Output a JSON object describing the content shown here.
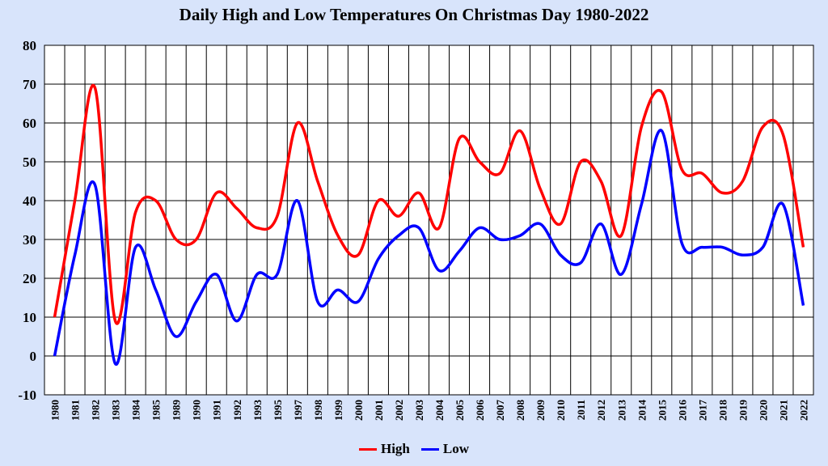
{
  "chart_data": {
    "type": "line",
    "title": "Daily High and Low Temperatures On Christmas Day 1980-2022",
    "xlabel": "",
    "ylabel": "",
    "ylim": [
      -10,
      80
    ],
    "yticks": [
      -10,
      0,
      10,
      20,
      30,
      40,
      50,
      60,
      70,
      80
    ],
    "grid": true,
    "legend_position": "bottom-center",
    "categories": [
      "1980",
      "1981",
      "1982",
      "1983",
      "1984",
      "1985",
      "1989",
      "1990",
      "1991",
      "1992",
      "1993",
      "1995",
      "1997",
      "1998",
      "1999",
      "2000",
      "2001",
      "2002",
      "2003",
      "2004",
      "2005",
      "2006",
      "2007",
      "2008",
      "2009",
      "2010",
      "2011",
      "2012",
      "2013",
      "2014",
      "2015",
      "2016",
      "2017",
      "2018",
      "2019",
      "2020",
      "2021",
      "2022"
    ],
    "series": [
      {
        "name": "High",
        "color": "#ff0000",
        "values": [
          10,
          40,
          69,
          9,
          37,
          40,
          30,
          30,
          42,
          38,
          33,
          36,
          60,
          45,
          31,
          26,
          40,
          36,
          42,
          33,
          56,
          50,
          47,
          58,
          43,
          34,
          50,
          45,
          31,
          59,
          68,
          48,
          47,
          42,
          45,
          59,
          57,
          28
        ]
      },
      {
        "name": "Low",
        "color": "#0000ff",
        "values": [
          0,
          26,
          44,
          -2,
          28,
          17,
          5,
          14,
          21,
          9,
          21,
          21,
          40,
          14,
          17,
          14,
          25,
          31,
          33,
          22,
          27,
          33,
          30,
          31,
          34,
          26,
          24,
          34,
          21,
          39,
          58,
          29,
          28,
          28,
          26,
          28,
          39,
          13
        ]
      }
    ]
  },
  "legend": {
    "high_label": "High",
    "low_label": "Low"
  },
  "colors": {
    "background": "#d8e4fb",
    "plot_background": "#ffffff",
    "high": "#ff0000",
    "low": "#0000ff"
  }
}
